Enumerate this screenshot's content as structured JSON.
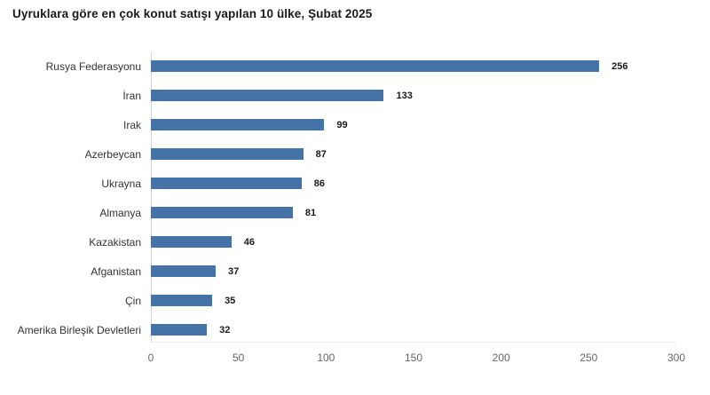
{
  "chart_data": {
    "type": "bar",
    "orientation": "horizontal",
    "title": "Uyruklara göre en çok konut satışı yapılan 10 ülke, Şubat 2025",
    "categories": [
      "Rusya Federasyonu",
      "İran",
      "Irak",
      "Azerbeycan",
      "Ukrayna",
      "Almanya",
      "Kazakistan",
      "Afganistan",
      "Çin",
      "Amerika Birleşik Devletleri"
    ],
    "values": [
      256,
      133,
      99,
      87,
      86,
      81,
      46,
      37,
      35,
      32
    ],
    "xlabel": "",
    "ylabel": "",
    "xlim": [
      0,
      300
    ],
    "xticks": [
      0,
      50,
      100,
      150,
      200,
      250,
      300
    ],
    "grid": false,
    "legend": "none",
    "bar_color": "#4572a7",
    "value_label_color": "#1a1a1a",
    "category_label_color": "#333333",
    "tick_label_color": "#666666",
    "y_axis_line_color": "#d4d4d4",
    "x_axis_line_color": "#ececec",
    "background_color": "#ffffff"
  }
}
